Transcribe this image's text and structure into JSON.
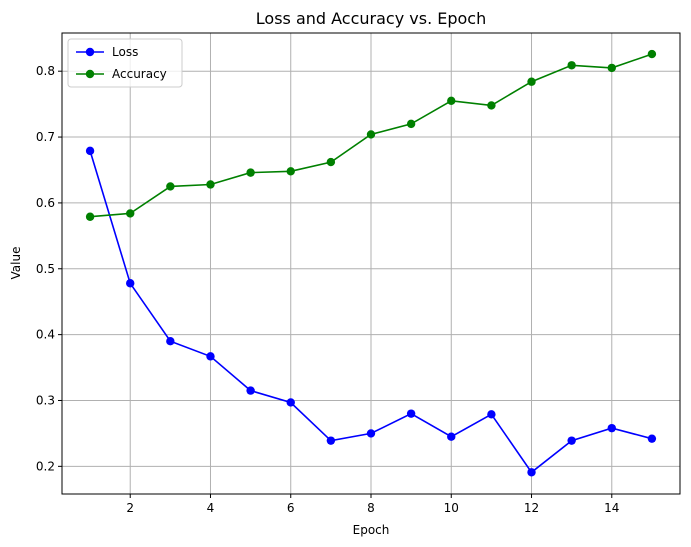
{
  "chart_data": {
    "type": "line",
    "title": "Loss and Accuracy vs. Epoch",
    "xlabel": "Epoch",
    "ylabel": "Value",
    "xlim": [
      0.3,
      15.7
    ],
    "ylim": [
      0.158,
      0.858
    ],
    "xticks": [
      2,
      4,
      6,
      8,
      10,
      12,
      14
    ],
    "yticks": [
      0.2,
      0.3,
      0.4,
      0.5,
      0.6,
      0.7,
      0.8
    ],
    "grid": true,
    "legend_position": "top-left",
    "x": [
      1,
      2,
      3,
      4,
      5,
      6,
      7,
      8,
      9,
      10,
      11,
      12,
      13,
      14,
      15
    ],
    "series": [
      {
        "name": "Loss",
        "color": "#0000ff",
        "marker": "circle",
        "values": [
          0.679,
          0.478,
          0.39,
          0.367,
          0.315,
          0.297,
          0.239,
          0.25,
          0.28,
          0.245,
          0.279,
          0.191,
          0.239,
          0.258,
          0.242
        ]
      },
      {
        "name": "Accuracy",
        "color": "#008000",
        "marker": "circle",
        "values": [
          0.579,
          0.584,
          0.625,
          0.628,
          0.646,
          0.648,
          0.662,
          0.704,
          0.72,
          0.755,
          0.748,
          0.784,
          0.809,
          0.805,
          0.826
        ]
      }
    ]
  }
}
